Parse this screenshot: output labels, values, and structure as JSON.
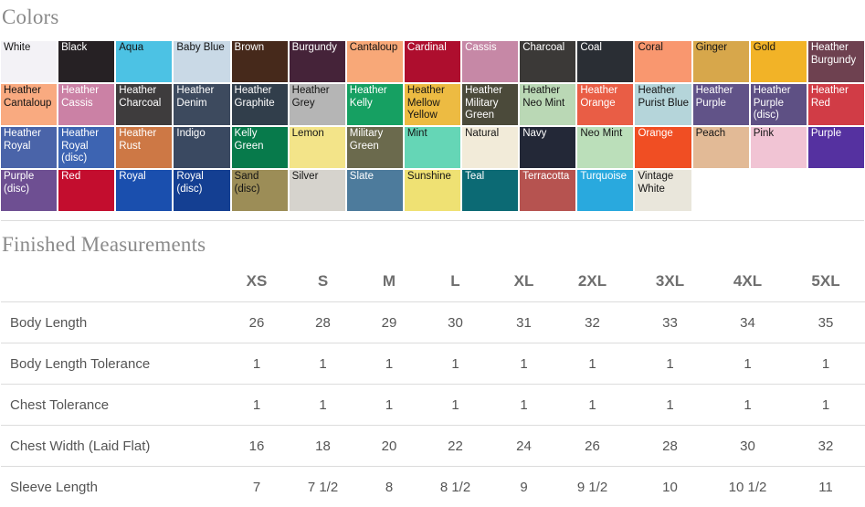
{
  "colors": {
    "title": "Colors",
    "swatches": [
      {
        "name": "White",
        "bg": "#f3f2f6",
        "text": "dark"
      },
      {
        "name": "Black",
        "bg": "#262124",
        "text": "light"
      },
      {
        "name": "Aqua",
        "bg": "#4cc2e4",
        "text": "dark"
      },
      {
        "name": "Baby Blue",
        "bg": "#c9d9e6",
        "text": "dark"
      },
      {
        "name": "Brown",
        "bg": "#46291b",
        "text": "light"
      },
      {
        "name": "Burgundy",
        "bg": "#452339",
        "text": "light"
      },
      {
        "name": "Cantaloup",
        "bg": "#f8a878",
        "text": "dark"
      },
      {
        "name": "Cardinal",
        "bg": "#ae0e2e",
        "text": "light"
      },
      {
        "name": "Cassis",
        "bg": "#c688a6",
        "text": "light"
      },
      {
        "name": "Charcoal",
        "bg": "#3b3937",
        "text": "light"
      },
      {
        "name": "Coal",
        "bg": "#2a2e34",
        "text": "light"
      },
      {
        "name": "Coral",
        "bg": "#f9976f",
        "text": "dark"
      },
      {
        "name": "Ginger",
        "bg": "#d7a74b",
        "text": "dark"
      },
      {
        "name": "Gold",
        "bg": "#f2b327",
        "text": "dark"
      },
      {
        "name": "Heather Burgundy",
        "bg": "#6e4150",
        "text": "light"
      },
      {
        "name": "Heather Cantaloup",
        "bg": "#f9aa80",
        "text": "dark"
      },
      {
        "name": "Heather Cassis",
        "bg": "#cb81a5",
        "text": "light"
      },
      {
        "name": "Heather Charcoal",
        "bg": "#3e3c3d",
        "text": "light"
      },
      {
        "name": "Heather Denim",
        "bg": "#3d4a5e",
        "text": "light"
      },
      {
        "name": "Heather Graphite",
        "bg": "#313e4b",
        "text": "light"
      },
      {
        "name": "Heather Grey",
        "bg": "#b5b5b5",
        "text": "dark"
      },
      {
        "name": "Heather Kelly",
        "bg": "#16a062",
        "text": "light"
      },
      {
        "name": "Heather Mellow Yellow",
        "bg": "#edbb42",
        "text": "dark"
      },
      {
        "name": "Heather Military Green",
        "bg": "#4b4a3a",
        "text": "light"
      },
      {
        "name": "Heather Neo Mint",
        "bg": "#bad8b5",
        "text": "dark"
      },
      {
        "name": "Heather Orange",
        "bg": "#e95d45",
        "text": "light"
      },
      {
        "name": "Heather Purist Blue",
        "bg": "#b5d5da",
        "text": "dark"
      },
      {
        "name": "Heather Purple",
        "bg": "#615388",
        "text": "light"
      },
      {
        "name": "Heather Purple (disc)",
        "bg": "#5e5084",
        "text": "light"
      },
      {
        "name": "Heather Red",
        "bg": "#d13c46",
        "text": "light"
      },
      {
        "name": "Heather Royal",
        "bg": "#4a64a9",
        "text": "light"
      },
      {
        "name": "Heather Royal (disc)",
        "bg": "#3d64b2",
        "text": "light"
      },
      {
        "name": "Heather Rust",
        "bg": "#cd7845",
        "text": "light"
      },
      {
        "name": "Indigo",
        "bg": "#3a4961",
        "text": "light"
      },
      {
        "name": "Kelly Green",
        "bg": "#077a4b",
        "text": "light"
      },
      {
        "name": "Lemon",
        "bg": "#f3e489",
        "text": "dark"
      },
      {
        "name": "Military Green",
        "bg": "#6b6a4d",
        "text": "light"
      },
      {
        "name": "Mint",
        "bg": "#65d6b6",
        "text": "dark"
      },
      {
        "name": "Natural",
        "bg": "#f2ebd9",
        "text": "dark"
      },
      {
        "name": "Navy",
        "bg": "#232837",
        "text": "light"
      },
      {
        "name": "Neo Mint",
        "bg": "#bbdfba",
        "text": "dark"
      },
      {
        "name": "Orange",
        "bg": "#f04e23",
        "text": "light"
      },
      {
        "name": "Peach",
        "bg": "#e2ba96",
        "text": "dark"
      },
      {
        "name": "Pink",
        "bg": "#f1c4d4",
        "text": "dark"
      },
      {
        "name": "Purple",
        "bg": "#5531a0",
        "text": "light"
      },
      {
        "name": "Purple (disc)",
        "bg": "#6e4f92",
        "text": "light"
      },
      {
        "name": "Red",
        "bg": "#c30d2e",
        "text": "light"
      },
      {
        "name": "Royal",
        "bg": "#1a4fae",
        "text": "light"
      },
      {
        "name": "Royal (disc)",
        "bg": "#143f92",
        "text": "light"
      },
      {
        "name": "Sand (disc)",
        "bg": "#9c8d57",
        "text": "dark"
      },
      {
        "name": "Silver",
        "bg": "#d6d3cd",
        "text": "dark"
      },
      {
        "name": "Slate",
        "bg": "#4d7b9c",
        "text": "light"
      },
      {
        "name": "Sunshine",
        "bg": "#efe173",
        "text": "dark"
      },
      {
        "name": "Teal",
        "bg": "#0c6a74",
        "text": "light"
      },
      {
        "name": "Terracotta",
        "bg": "#b65350",
        "text": "light"
      },
      {
        "name": "Turquoise",
        "bg": "#29a9de",
        "text": "light"
      },
      {
        "name": "Vintage White",
        "bg": "#e9e6db",
        "text": "dark"
      }
    ]
  },
  "measurements": {
    "title": "Finished Measurements",
    "sizes": [
      "XS",
      "S",
      "M",
      "L",
      "XL",
      "2XL",
      "3XL",
      "4XL",
      "5XL"
    ],
    "rows": [
      {
        "label": "Body Length",
        "values": [
          "26",
          "28",
          "29",
          "30",
          "31",
          "32",
          "33",
          "34",
          "35"
        ]
      },
      {
        "label": "Body Length Tolerance",
        "values": [
          "1",
          "1",
          "1",
          "1",
          "1",
          "1",
          "1",
          "1",
          "1"
        ]
      },
      {
        "label": "Chest Tolerance",
        "values": [
          "1",
          "1",
          "1",
          "1",
          "1",
          "1",
          "1",
          "1",
          "1"
        ]
      },
      {
        "label": "Chest Width (Laid Flat)",
        "values": [
          "16",
          "18",
          "20",
          "22",
          "24",
          "26",
          "28",
          "30",
          "32"
        ]
      },
      {
        "label": "Sleeve Length",
        "values": [
          "7",
          "7 1/2",
          "8",
          "8 1/2",
          "9",
          "9 1/2",
          "10",
          "10 1/2",
          "11"
        ]
      }
    ]
  }
}
